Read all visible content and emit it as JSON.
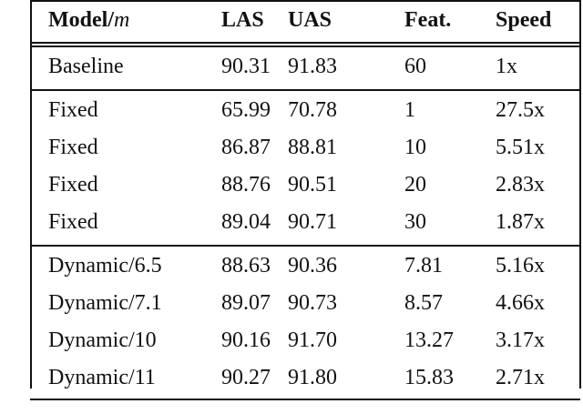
{
  "table": {
    "header": {
      "model": {
        "text": "Model/",
        "var": "m"
      },
      "cols": [
        "LAS",
        "UAS",
        "Feat.",
        "Speed"
      ]
    },
    "groups": [
      [
        [
          "Baseline",
          "90.31",
          "91.83",
          "60",
          "1x"
        ]
      ],
      [
        [
          "Fixed",
          "65.99",
          "70.78",
          "1",
          "27.5x"
        ],
        [
          "Fixed",
          "86.87",
          "88.81",
          "10",
          "5.51x"
        ],
        [
          "Fixed",
          "88.76",
          "90.51",
          "20",
          "2.83x"
        ],
        [
          "Fixed",
          "89.04",
          "90.71",
          "30",
          "1.87x"
        ]
      ],
      [
        [
          "Dynamic/6.5",
          "88.63",
          "90.36",
          "7.81",
          "5.16x"
        ],
        [
          "Dynamic/7.1",
          "89.07",
          "90.73",
          "8.57",
          "4.66x"
        ],
        [
          "Dynamic/10",
          "90.16",
          "91.70",
          "13.27",
          "3.17x"
        ],
        [
          "Dynamic/11",
          "90.27",
          "91.80",
          "15.83",
          "2.71x"
        ]
      ]
    ]
  }
}
